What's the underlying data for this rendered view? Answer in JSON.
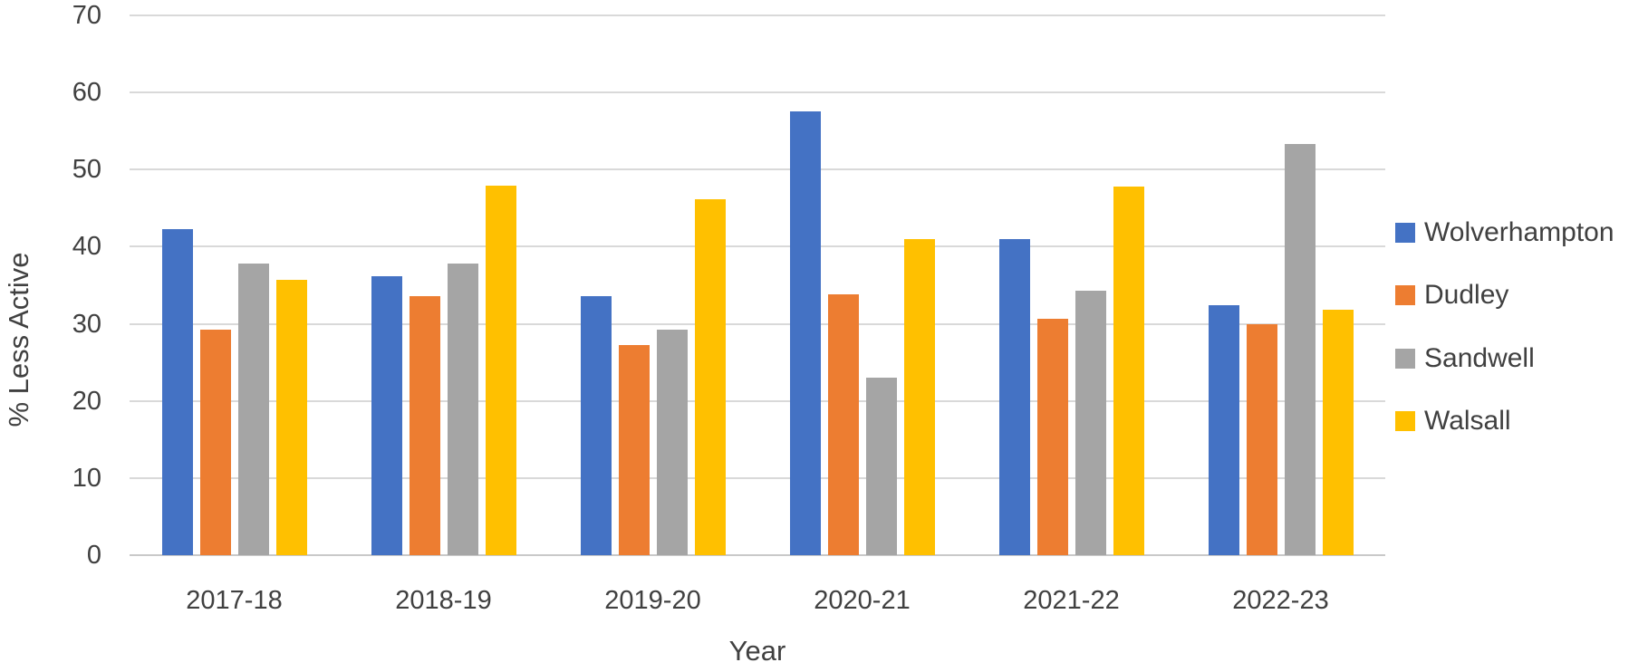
{
  "chart_data": {
    "type": "bar",
    "title": "",
    "xlabel": "Year",
    "ylabel": "% Less Active",
    "categories": [
      "2017-18",
      "2018-19",
      "2019-20",
      "2020-21",
      "2021-22",
      "2022-23"
    ],
    "series": [
      {
        "name": "Wolverhampton",
        "color": "#4472C4",
        "values": [
          42.3,
          36.2,
          33.6,
          57.5,
          41.0,
          32.4
        ]
      },
      {
        "name": "Dudley",
        "color": "#ED7D31",
        "values": [
          29.3,
          33.6,
          27.3,
          33.8,
          30.6,
          29.9
        ]
      },
      {
        "name": "Sandwell",
        "color": "#A5A5A5",
        "values": [
          37.8,
          37.8,
          29.3,
          23.0,
          34.3,
          53.3
        ]
      },
      {
        "name": "Walsall",
        "color": "#FFC000",
        "values": [
          35.7,
          47.9,
          46.2,
          41.0,
          47.8,
          31.8
        ]
      }
    ],
    "ylim": [
      0,
      70
    ],
    "yticks": [
      0,
      10,
      20,
      30,
      40,
      50,
      60,
      70
    ],
    "grid": true,
    "legend_position": "right"
  },
  "colors": {
    "text": "#404040",
    "gridline": "#D9D9D9",
    "axis_line": "#C9C9C9",
    "background": "#FFFFFF"
  }
}
